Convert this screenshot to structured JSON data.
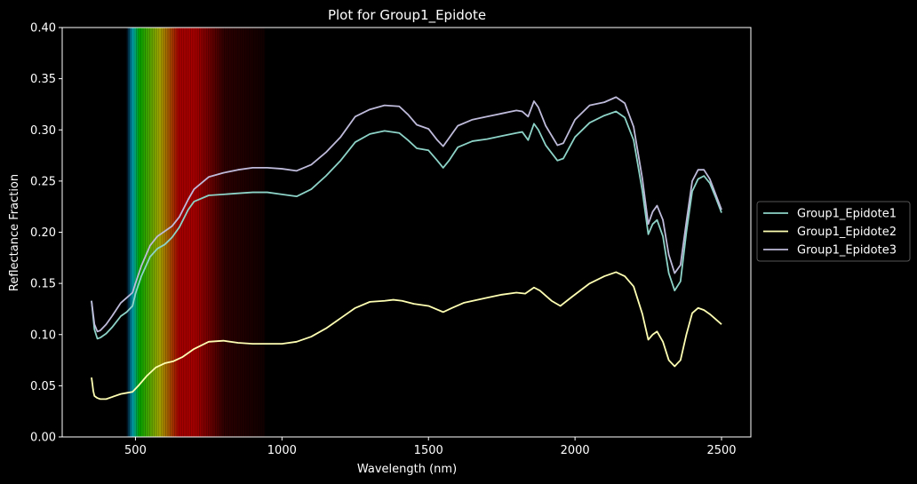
{
  "chart_data": {
    "type": "line",
    "title": "Plot for Group1_Epidote",
    "xlabel": "Wavelength (nm)",
    "ylabel": "Reflectance Fraction",
    "xlim": [
      250,
      2600
    ],
    "ylim": [
      0.0,
      0.4
    ],
    "x_ticks": [
      500,
      1000,
      1500,
      2000,
      2500
    ],
    "x_tick_labels": [
      "500",
      "1000",
      "1500",
      "2000",
      "2500"
    ],
    "y_ticks": [
      0.0,
      0.05,
      0.1,
      0.15,
      0.2,
      0.25,
      0.3,
      0.35,
      0.4
    ],
    "y_tick_labels": [
      "0.00",
      "0.05",
      "0.10",
      "0.15",
      "0.20",
      "0.25",
      "0.30",
      "0.35",
      "0.40"
    ],
    "grid": false,
    "legend_position": "outside-right",
    "background": "#000000",
    "spectrum_band_nm": [
      470,
      940
    ],
    "series": [
      {
        "name": "Group1_Epidote1",
        "color": "#8dd3c7",
        "points": [
          [
            350,
            0.133
          ],
          [
            360,
            0.105
          ],
          [
            370,
            0.096
          ],
          [
            380,
            0.097
          ],
          [
            400,
            0.101
          ],
          [
            420,
            0.107
          ],
          [
            450,
            0.118
          ],
          [
            470,
            0.122
          ],
          [
            490,
            0.128
          ],
          [
            500,
            0.14
          ],
          [
            520,
            0.157
          ],
          [
            550,
            0.176
          ],
          [
            575,
            0.184
          ],
          [
            600,
            0.188
          ],
          [
            625,
            0.195
          ],
          [
            650,
            0.205
          ],
          [
            680,
            0.222
          ],
          [
            700,
            0.23
          ],
          [
            750,
            0.236
          ],
          [
            800,
            0.237
          ],
          [
            850,
            0.238
          ],
          [
            900,
            0.239
          ],
          [
            950,
            0.239
          ],
          [
            1000,
            0.237
          ],
          [
            1050,
            0.235
          ],
          [
            1100,
            0.242
          ],
          [
            1150,
            0.255
          ],
          [
            1200,
            0.27
          ],
          [
            1250,
            0.288
          ],
          [
            1300,
            0.296
          ],
          [
            1350,
            0.299
          ],
          [
            1400,
            0.297
          ],
          [
            1430,
            0.29
          ],
          [
            1460,
            0.282
          ],
          [
            1500,
            0.28
          ],
          [
            1530,
            0.27
          ],
          [
            1550,
            0.263
          ],
          [
            1570,
            0.27
          ],
          [
            1600,
            0.283
          ],
          [
            1650,
            0.289
          ],
          [
            1700,
            0.291
          ],
          [
            1750,
            0.294
          ],
          [
            1800,
            0.297
          ],
          [
            1820,
            0.298
          ],
          [
            1840,
            0.29
          ],
          [
            1860,
            0.306
          ],
          [
            1875,
            0.3
          ],
          [
            1900,
            0.285
          ],
          [
            1940,
            0.27
          ],
          [
            1960,
            0.272
          ],
          [
            2000,
            0.293
          ],
          [
            2050,
            0.307
          ],
          [
            2100,
            0.314
          ],
          [
            2140,
            0.318
          ],
          [
            2170,
            0.312
          ],
          [
            2200,
            0.29
          ],
          [
            2230,
            0.24
          ],
          [
            2250,
            0.198
          ],
          [
            2265,
            0.208
          ],
          [
            2280,
            0.212
          ],
          [
            2300,
            0.196
          ],
          [
            2320,
            0.16
          ],
          [
            2340,
            0.143
          ],
          [
            2360,
            0.152
          ],
          [
            2380,
            0.2
          ],
          [
            2400,
            0.24
          ],
          [
            2420,
            0.252
          ],
          [
            2440,
            0.255
          ],
          [
            2460,
            0.248
          ],
          [
            2480,
            0.234
          ],
          [
            2500,
            0.219
          ]
        ]
      },
      {
        "name": "Group1_Epidote2",
        "color": "#ffffb3",
        "points": [
          [
            350,
            0.058
          ],
          [
            353,
            0.052
          ],
          [
            356,
            0.045
          ],
          [
            360,
            0.04
          ],
          [
            370,
            0.038
          ],
          [
            380,
            0.037
          ],
          [
            400,
            0.037
          ],
          [
            420,
            0.039
          ],
          [
            450,
            0.042
          ],
          [
            470,
            0.043
          ],
          [
            490,
            0.044
          ],
          [
            510,
            0.05
          ],
          [
            540,
            0.06
          ],
          [
            570,
            0.068
          ],
          [
            600,
            0.072
          ],
          [
            630,
            0.074
          ],
          [
            660,
            0.078
          ],
          [
            700,
            0.086
          ],
          [
            750,
            0.093
          ],
          [
            800,
            0.094
          ],
          [
            850,
            0.092
          ],
          [
            900,
            0.091
          ],
          [
            950,
            0.091
          ],
          [
            1000,
            0.091
          ],
          [
            1050,
            0.093
          ],
          [
            1100,
            0.098
          ],
          [
            1150,
            0.106
          ],
          [
            1200,
            0.116
          ],
          [
            1250,
            0.126
          ],
          [
            1300,
            0.132
          ],
          [
            1350,
            0.133
          ],
          [
            1380,
            0.134
          ],
          [
            1410,
            0.133
          ],
          [
            1450,
            0.13
          ],
          [
            1500,
            0.128
          ],
          [
            1550,
            0.122
          ],
          [
            1580,
            0.126
          ],
          [
            1620,
            0.131
          ],
          [
            1700,
            0.136
          ],
          [
            1750,
            0.139
          ],
          [
            1800,
            0.141
          ],
          [
            1830,
            0.14
          ],
          [
            1860,
            0.146
          ],
          [
            1880,
            0.143
          ],
          [
            1920,
            0.133
          ],
          [
            1950,
            0.128
          ],
          [
            1990,
            0.137
          ],
          [
            2050,
            0.15
          ],
          [
            2100,
            0.157
          ],
          [
            2140,
            0.161
          ],
          [
            2170,
            0.157
          ],
          [
            2200,
            0.147
          ],
          [
            2230,
            0.12
          ],
          [
            2250,
            0.095
          ],
          [
            2265,
            0.1
          ],
          [
            2280,
            0.103
          ],
          [
            2300,
            0.093
          ],
          [
            2320,
            0.075
          ],
          [
            2340,
            0.069
          ],
          [
            2360,
            0.075
          ],
          [
            2380,
            0.1
          ],
          [
            2400,
            0.121
          ],
          [
            2420,
            0.126
          ],
          [
            2440,
            0.124
          ],
          [
            2460,
            0.12
          ],
          [
            2480,
            0.115
          ],
          [
            2500,
            0.11
          ]
        ]
      },
      {
        "name": "Group1_Epidote3",
        "color": "#bebada",
        "points": [
          [
            350,
            0.133
          ],
          [
            360,
            0.11
          ],
          [
            370,
            0.103
          ],
          [
            380,
            0.104
          ],
          [
            400,
            0.11
          ],
          [
            420,
            0.118
          ],
          [
            450,
            0.131
          ],
          [
            470,
            0.136
          ],
          [
            490,
            0.141
          ],
          [
            500,
            0.15
          ],
          [
            520,
            0.167
          ],
          [
            550,
            0.187
          ],
          [
            575,
            0.196
          ],
          [
            600,
            0.201
          ],
          [
            625,
            0.206
          ],
          [
            650,
            0.215
          ],
          [
            680,
            0.232
          ],
          [
            700,
            0.242
          ],
          [
            750,
            0.254
          ],
          [
            800,
            0.258
          ],
          [
            850,
            0.261
          ],
          [
            900,
            0.263
          ],
          [
            950,
            0.263
          ],
          [
            1000,
            0.262
          ],
          [
            1050,
            0.26
          ],
          [
            1100,
            0.266
          ],
          [
            1150,
            0.278
          ],
          [
            1200,
            0.293
          ],
          [
            1250,
            0.313
          ],
          [
            1300,
            0.32
          ],
          [
            1350,
            0.324
          ],
          [
            1400,
            0.323
          ],
          [
            1430,
            0.315
          ],
          [
            1460,
            0.305
          ],
          [
            1500,
            0.301
          ],
          [
            1530,
            0.29
          ],
          [
            1550,
            0.284
          ],
          [
            1570,
            0.292
          ],
          [
            1600,
            0.304
          ],
          [
            1650,
            0.31
          ],
          [
            1700,
            0.313
          ],
          [
            1750,
            0.316
          ],
          [
            1800,
            0.319
          ],
          [
            1820,
            0.318
          ],
          [
            1840,
            0.313
          ],
          [
            1860,
            0.328
          ],
          [
            1875,
            0.322
          ],
          [
            1900,
            0.304
          ],
          [
            1940,
            0.285
          ],
          [
            1960,
            0.287
          ],
          [
            2000,
            0.31
          ],
          [
            2050,
            0.324
          ],
          [
            2100,
            0.327
          ],
          [
            2140,
            0.332
          ],
          [
            2170,
            0.326
          ],
          [
            2200,
            0.303
          ],
          [
            2230,
            0.252
          ],
          [
            2250,
            0.208
          ],
          [
            2265,
            0.22
          ],
          [
            2280,
            0.226
          ],
          [
            2300,
            0.212
          ],
          [
            2320,
            0.178
          ],
          [
            2340,
            0.16
          ],
          [
            2360,
            0.168
          ],
          [
            2380,
            0.21
          ],
          [
            2400,
            0.25
          ],
          [
            2420,
            0.261
          ],
          [
            2440,
            0.261
          ],
          [
            2460,
            0.252
          ],
          [
            2480,
            0.237
          ],
          [
            2500,
            0.222
          ]
        ]
      }
    ]
  }
}
